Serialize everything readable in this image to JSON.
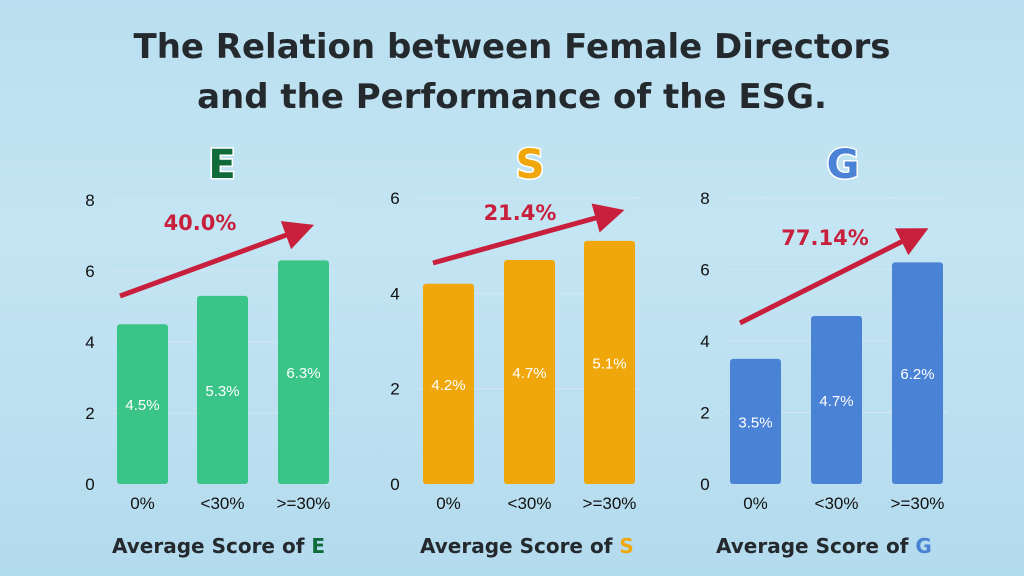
{
  "title_lines": [
    "The Relation between Female Directors",
    "and the Performance of the ESG."
  ],
  "colors": {
    "arrow": "#c81f3d",
    "grid": "#d3e6ef"
  },
  "chart_data": [
    {
      "type": "bar",
      "heading": "E",
      "heading_color": "#0f6b3a",
      "bar_color": "#3ac487",
      "categories": [
        "0%",
        "<30%",
        ">=30%"
      ],
      "values": [
        4.5,
        5.3,
        6.3
      ],
      "data_labels": [
        "4.5%",
        "5.3%",
        "6.3%"
      ],
      "ylim": [
        0,
        8
      ],
      "yticks": [
        0,
        2,
        4,
        6,
        8
      ],
      "increase_label": "40.0%",
      "xlabel_prefix": "Average Score of ",
      "xlabel_letter": "E",
      "grid": true
    },
    {
      "type": "bar",
      "heading": "S",
      "heading_color": "#f0a70c",
      "bar_color": "#f0a70c",
      "categories": [
        "0%",
        "<30%",
        ">=30%"
      ],
      "values": [
        4.2,
        4.7,
        5.1
      ],
      "data_labels": [
        "4.2%",
        "4.7%",
        "5.1%"
      ],
      "ylim": [
        0,
        6
      ],
      "yticks": [
        0,
        2,
        4,
        6
      ],
      "increase_label": "21.4%",
      "xlabel_prefix": "Average Score of ",
      "xlabel_letter": "S",
      "grid": true
    },
    {
      "type": "bar",
      "heading": "G",
      "heading_color": "#4a82d6",
      "bar_color": "#4a82d6",
      "categories": [
        "0%",
        "<30%",
        ">=30%"
      ],
      "values": [
        3.5,
        4.7,
        6.2
      ],
      "data_labels": [
        "3.5%",
        "4.7%",
        "6.2%"
      ],
      "ylim": [
        0,
        8
      ],
      "yticks": [
        0,
        2,
        4,
        6,
        8
      ],
      "increase_label": "77.14%",
      "xlabel_prefix": "Average Score of ",
      "xlabel_letter": "G",
      "grid": true
    }
  ]
}
